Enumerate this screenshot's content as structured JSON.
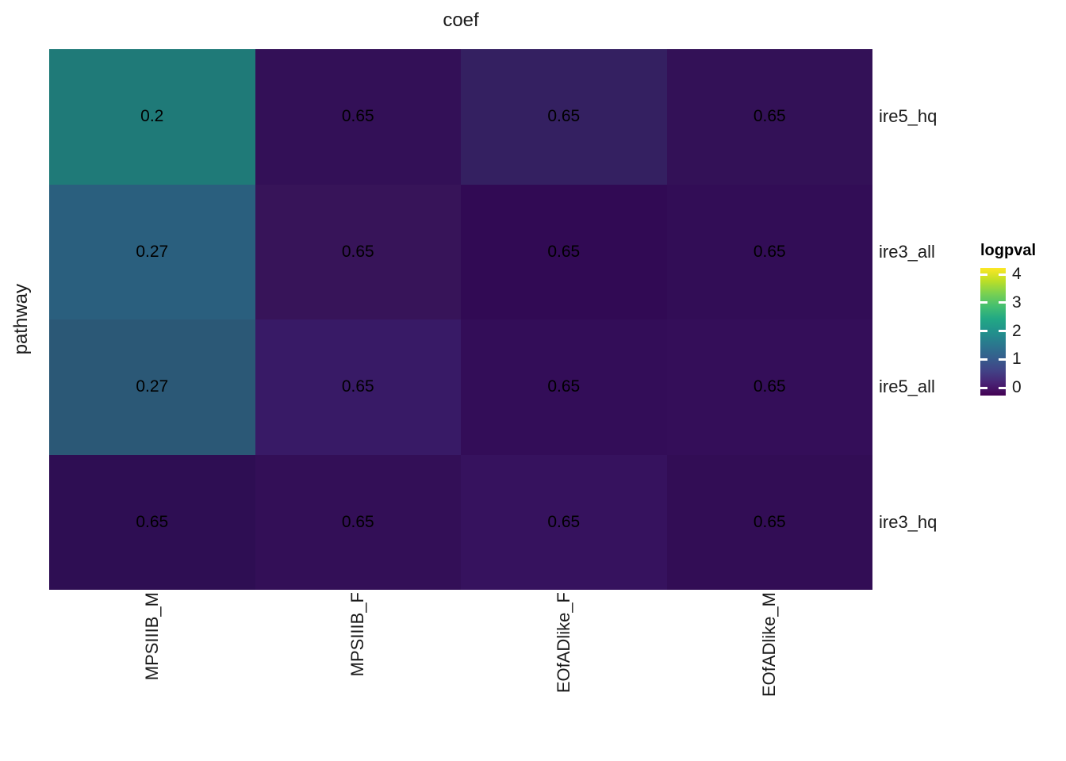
{
  "chart_data": {
    "type": "heatmap",
    "title": "coef",
    "xlabel": "coef",
    "xlabel_position": "top",
    "ylabel": "pathway",
    "columns": [
      "MPSIIIB_M",
      "MPSIIIB_F",
      "EOfADlike_F",
      "EOfADlike_M"
    ],
    "rows": [
      "ire5_hq",
      "ire3_all",
      "ire5_all",
      "ire3_hq"
    ],
    "cell_labels": [
      [
        "0.2",
        "0.65",
        "0.65",
        "0.65"
      ],
      [
        "0.27",
        "0.65",
        "0.65",
        "0.65"
      ],
      [
        "0.27",
        "0.65",
        "0.65",
        "0.65"
      ],
      [
        "0.65",
        "0.65",
        "0.65",
        "0.65"
      ]
    ],
    "cell_colors": [
      [
        "#1f7a78",
        "#331057",
        "#342061",
        "#331157"
      ],
      [
        "#2a5f7e",
        "#371459",
        "#310a54",
        "#320d56"
      ],
      [
        "#2b5876",
        "#381a66",
        "#330d58",
        "#340e59"
      ],
      [
        "#2e0e53",
        "#330f57",
        "#36125e",
        "#320d55"
      ]
    ],
    "fill_variable": "logpval",
    "logpval_estimated": [
      [
        1.9,
        0.1,
        0.3,
        0.1
      ],
      [
        1.5,
        0.15,
        0.05,
        0.08
      ],
      [
        1.4,
        0.25,
        0.08,
        0.1
      ],
      [
        0.05,
        0.1,
        0.2,
        0.07
      ]
    ],
    "grid": false,
    "legend": {
      "title": "logpval",
      "position": "right",
      "tick_labels": [
        "4",
        "3",
        "2",
        "1",
        "0"
      ],
      "tick_values": [
        4,
        3,
        2,
        1,
        0
      ],
      "range": [
        0,
        4
      ],
      "colormap": "viridis",
      "gradient_stops": [
        "#440154",
        "#482475",
        "#414487",
        "#355f8d",
        "#2a788e",
        "#21918c",
        "#22a884",
        "#44bf70",
        "#7ad151",
        "#bddf26",
        "#fde725"
      ],
      "tick_mark_color": "#ffffff"
    },
    "text_color": "#000000",
    "axis_text_color": "#1a1a1a"
  }
}
